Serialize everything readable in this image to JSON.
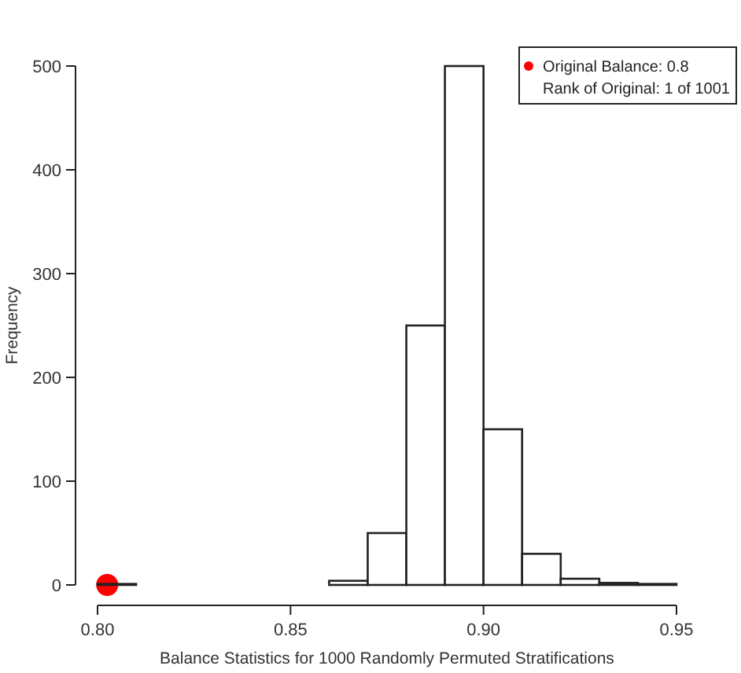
{
  "chart_data": {
    "type": "histogram",
    "xlabel": "Balance Statistics for 1000 Randomly Permuted Stratifications",
    "ylabel": "Frequency",
    "bins": [
      0.8,
      0.81,
      0.82,
      0.83,
      0.84,
      0.85,
      0.86,
      0.87,
      0.88,
      0.89,
      0.9,
      0.91,
      0.92,
      0.93,
      0.94,
      0.95
    ],
    "values": [
      1,
      0,
      0,
      0,
      0,
      0,
      4,
      50,
      250,
      500,
      150,
      30,
      6,
      2,
      1
    ],
    "color": "#ffffff",
    "series": [
      {
        "type": "scatter",
        "name": "Original Balance: 0.8",
        "color": "#ff0000",
        "x": [
          0.8025
        ],
        "values": [
          0
        ]
      }
    ],
    "annotations": [
      "Rank of Original: 1 of 1001"
    ],
    "xlim": [
      0.8,
      0.95
    ],
    "xticks": [
      {
        "value": 0.8,
        "label": "0.80"
      },
      {
        "value": 0.85,
        "label": "0.85"
      },
      {
        "value": 0.9,
        "label": "0.90"
      },
      {
        "value": 0.95,
        "label": "0.95"
      }
    ],
    "ylim": [
      0,
      500
    ],
    "yticks": [
      0,
      100,
      200,
      300,
      400,
      500
    ],
    "legend": "top right",
    "grid": false
  }
}
